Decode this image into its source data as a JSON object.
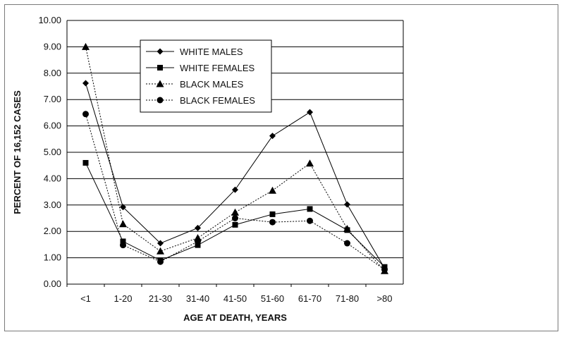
{
  "chart_data": {
    "type": "line",
    "title": "",
    "xlabel": "AGE AT DEATH, YEARS",
    "ylabel": "PERCENT OF 16,152 CASES",
    "categories": [
      "<1",
      "1-20",
      "21-30",
      "31-40",
      "41-50",
      "51-60",
      "61-70",
      "71-80",
      ">80"
    ],
    "ylim": [
      0,
      10
    ],
    "yticks": [
      "0.00",
      "1.00",
      "2.00",
      "3.00",
      "4.00",
      "5.00",
      "6.00",
      "7.00",
      "8.00",
      "9.00",
      "10.00"
    ],
    "grid": "horizontal",
    "legend_position": "top-center",
    "series": [
      {
        "name": "WHITE MALES",
        "marker": "diamond",
        "line": "solid",
        "values": [
          7.62,
          2.92,
          1.55,
          2.13,
          3.58,
          5.62,
          6.52,
          3.02,
          0.6
        ]
      },
      {
        "name": "WHITE FEMALES",
        "marker": "square",
        "line": "solid",
        "values": [
          4.6,
          1.62,
          0.9,
          1.48,
          2.25,
          2.65,
          2.85,
          2.05,
          0.65
        ]
      },
      {
        "name": "BLACK MALES",
        "marker": "triangle",
        "line": "dotted",
        "values": [
          9.0,
          2.28,
          1.25,
          1.75,
          2.72,
          3.55,
          4.58,
          2.1,
          0.5
        ]
      },
      {
        "name": "BLACK FEMALES",
        "marker": "circle",
        "line": "dotted",
        "values": [
          6.45,
          1.48,
          0.85,
          1.62,
          2.5,
          2.35,
          2.4,
          1.55,
          0.55
        ]
      }
    ]
  }
}
